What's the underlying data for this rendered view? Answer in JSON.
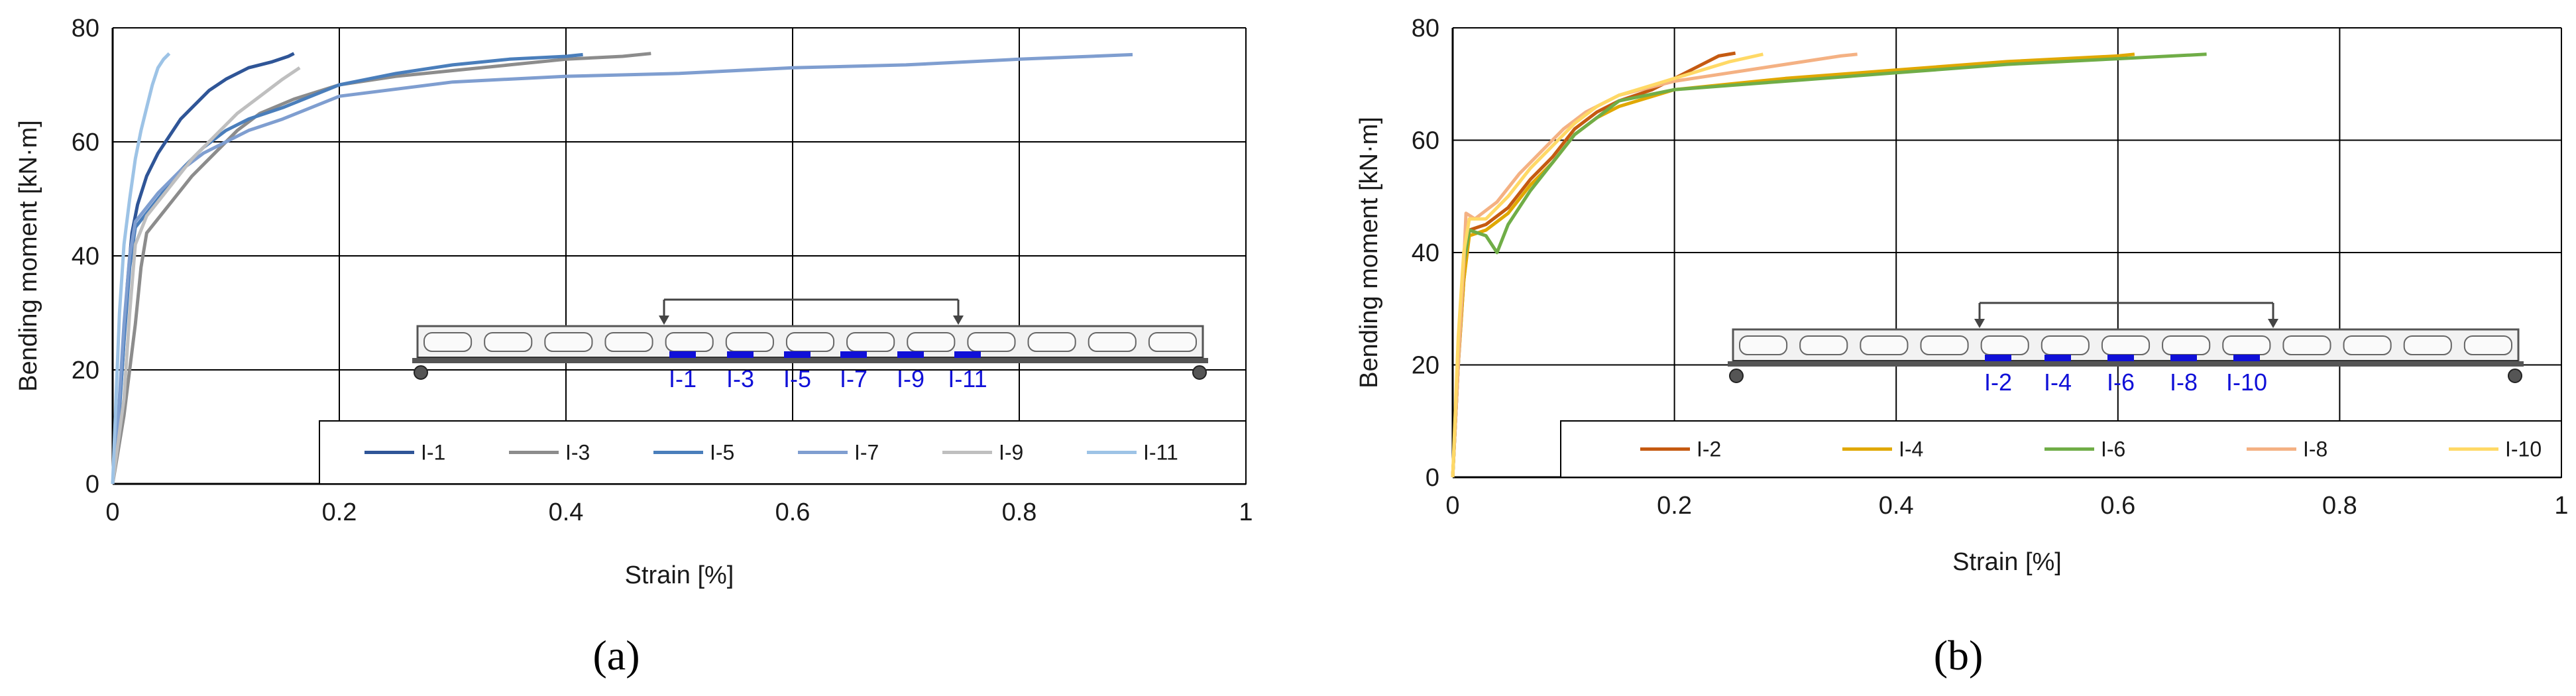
{
  "chart_data": [
    {
      "panel": "a",
      "type": "line",
      "panel_label_text": "(a)",
      "xlabel": "Strain [%]",
      "ylabel": "Bending moment [kN·m]",
      "xlim": [
        0,
        1
      ],
      "ylim": [
        0,
        80
      ],
      "xticks": [
        "0",
        "0.2",
        "0.4",
        "0.6",
        "0.8",
        "1"
      ],
      "yticks": [
        "0",
        "20",
        "40",
        "60",
        "80"
      ],
      "grid": true,
      "legend_position": "bottom-right inside",
      "series": [
        {
          "name": "I-1",
          "color": "#2f5597",
          "points": [
            [
              0,
              0
            ],
            [
              0.004,
              8
            ],
            [
              0.009,
              22
            ],
            [
              0.013,
              35
            ],
            [
              0.017,
              44
            ],
            [
              0.022,
              49
            ],
            [
              0.03,
              54
            ],
            [
              0.04,
              58
            ],
            [
              0.05,
              61
            ],
            [
              0.06,
              64
            ],
            [
              0.07,
              66
            ],
            [
              0.085,
              69
            ],
            [
              0.1,
              71
            ],
            [
              0.12,
              73
            ],
            [
              0.14,
              74
            ],
            [
              0.155,
              75
            ],
            [
              0.16,
              75.5
            ]
          ]
        },
        {
          "name": "I-3",
          "color": "#8c8c8c",
          "points": [
            [
              0,
              0
            ],
            [
              0.01,
              12
            ],
            [
              0.02,
              28
            ],
            [
              0.025,
              38
            ],
            [
              0.03,
              44
            ],
            [
              0.05,
              49
            ],
            [
              0.07,
              54
            ],
            [
              0.09,
              58
            ],
            [
              0.11,
              62
            ],
            [
              0.13,
              65
            ],
            [
              0.16,
              67.5
            ],
            [
              0.2,
              70
            ],
            [
              0.25,
              71.5
            ],
            [
              0.3,
              72.5
            ],
            [
              0.35,
              73.5
            ],
            [
              0.4,
              74.5
            ],
            [
              0.45,
              75
            ],
            [
              0.475,
              75.5
            ]
          ]
        },
        {
          "name": "I-5",
          "color": "#4a7ebb",
          "points": [
            [
              0,
              0
            ],
            [
              0.005,
              10
            ],
            [
              0.01,
              25
            ],
            [
              0.015,
              38
            ],
            [
              0.02,
              45
            ],
            [
              0.04,
              50
            ],
            [
              0.06,
              55
            ],
            [
              0.08,
              59
            ],
            [
              0.1,
              62
            ],
            [
              0.12,
              64
            ],
            [
              0.15,
              66
            ],
            [
              0.2,
              70
            ],
            [
              0.25,
              72
            ],
            [
              0.3,
              73.5
            ],
            [
              0.35,
              74.5
            ],
            [
              0.4,
              75
            ],
            [
              0.415,
              75.3
            ]
          ]
        },
        {
          "name": "I-7",
          "color": "#7f9ed0",
          "points": [
            [
              0,
              0
            ],
            [
              0.005,
              12
            ],
            [
              0.01,
              28
            ],
            [
              0.015,
              40
            ],
            [
              0.02,
              46
            ],
            [
              0.04,
              51
            ],
            [
              0.06,
              55
            ],
            [
              0.08,
              58
            ],
            [
              0.1,
              60
            ],
            [
              0.12,
              62
            ],
            [
              0.15,
              64
            ],
            [
              0.2,
              68
            ],
            [
              0.3,
              70.5
            ],
            [
              0.4,
              71.5
            ],
            [
              0.5,
              72
            ],
            [
              0.6,
              73
            ],
            [
              0.7,
              73.5
            ],
            [
              0.8,
              74.5
            ],
            [
              0.9,
              75.3
            ]
          ]
        },
        {
          "name": "I-9",
          "color": "#bfbfbf",
          "points": [
            [
              0,
              0
            ],
            [
              0.01,
              15
            ],
            [
              0.015,
              30
            ],
            [
              0.02,
              42
            ],
            [
              0.03,
              47
            ],
            [
              0.05,
              52
            ],
            [
              0.07,
              57
            ],
            [
              0.09,
              61
            ],
            [
              0.11,
              65
            ],
            [
              0.13,
              68
            ],
            [
              0.15,
              71
            ],
            [
              0.165,
              73
            ]
          ]
        },
        {
          "name": "I-11",
          "color": "#9dc3e6",
          "points": [
            [
              0,
              0
            ],
            [
              0.003,
              15
            ],
            [
              0.006,
              30
            ],
            [
              0.01,
              42
            ],
            [
              0.015,
              50
            ],
            [
              0.02,
              57
            ],
            [
              0.025,
              62
            ],
            [
              0.03,
              66
            ],
            [
              0.035,
              70
            ],
            [
              0.04,
              73
            ],
            [
              0.045,
              74.5
            ],
            [
              0.05,
              75.5
            ]
          ]
        }
      ],
      "inset": {
        "gauge_labels": [
          "I-1",
          "I-3",
          "I-5",
          "I-7",
          "I-9",
          "I-11"
        ]
      }
    },
    {
      "panel": "b",
      "type": "line",
      "panel_label_text": "(b)",
      "xlabel": "Strain [%]",
      "ylabel": "Bending moment [kN·m]",
      "xlim": [
        0,
        1
      ],
      "ylim": [
        0,
        80
      ],
      "xticks": [
        "0",
        "0.2",
        "0.4",
        "0.6",
        "0.8",
        "1"
      ],
      "yticks": [
        "0",
        "20",
        "40",
        "60",
        "80"
      ],
      "grid": true,
      "legend_position": "bottom-right inside",
      "series": [
        {
          "name": "I-2",
          "color": "#c55a11",
          "points": [
            [
              0,
              0
            ],
            [
              0.005,
              20
            ],
            [
              0.01,
              35
            ],
            [
              0.015,
              44
            ],
            [
              0.03,
              45
            ],
            [
              0.05,
              48
            ],
            [
              0.07,
              53
            ],
            [
              0.09,
              57
            ],
            [
              0.11,
              62
            ],
            [
              0.13,
              65
            ],
            [
              0.15,
              67
            ],
            [
              0.18,
              69
            ],
            [
              0.2,
              71
            ],
            [
              0.22,
              73
            ],
            [
              0.24,
              75
            ],
            [
              0.255,
              75.5
            ]
          ]
        },
        {
          "name": "I-4",
          "color": "#e0a800",
          "points": [
            [
              0,
              0
            ],
            [
              0.005,
              20
            ],
            [
              0.01,
              35
            ],
            [
              0.015,
              43
            ],
            [
              0.03,
              44
            ],
            [
              0.05,
              47
            ],
            [
              0.07,
              52
            ],
            [
              0.09,
              56
            ],
            [
              0.11,
              61
            ],
            [
              0.13,
              64
            ],
            [
              0.15,
              66
            ],
            [
              0.2,
              69
            ],
            [
              0.3,
              71
            ],
            [
              0.4,
              72.5
            ],
            [
              0.5,
              74
            ],
            [
              0.6,
              75
            ],
            [
              0.615,
              75.3
            ]
          ]
        },
        {
          "name": "I-6",
          "color": "#70ad47",
          "points": [
            [
              0,
              0
            ],
            [
              0.005,
              20
            ],
            [
              0.01,
              38
            ],
            [
              0.015,
              44
            ],
            [
              0.03,
              43
            ],
            [
              0.04,
              40
            ],
            [
              0.05,
              45
            ],
            [
              0.07,
              51
            ],
            [
              0.09,
              56
            ],
            [
              0.11,
              61
            ],
            [
              0.13,
              64
            ],
            [
              0.15,
              67
            ],
            [
              0.2,
              69
            ],
            [
              0.3,
              70.5
            ],
            [
              0.4,
              72
            ],
            [
              0.5,
              73.5
            ],
            [
              0.6,
              74.5
            ],
            [
              0.68,
              75.3
            ]
          ]
        },
        {
          "name": "I-8",
          "color": "#f4b183",
          "points": [
            [
              0,
              0
            ],
            [
              0.005,
              20
            ],
            [
              0.01,
              38
            ],
            [
              0.012,
              47
            ],
            [
              0.02,
              46
            ],
            [
              0.04,
              49
            ],
            [
              0.06,
              54
            ],
            [
              0.08,
              58
            ],
            [
              0.1,
              62
            ],
            [
              0.12,
              65
            ],
            [
              0.15,
              68
            ],
            [
              0.2,
              70.5
            ],
            [
              0.25,
              72
            ],
            [
              0.3,
              73.5
            ],
            [
              0.35,
              75
            ],
            [
              0.365,
              75.3
            ]
          ]
        },
        {
          "name": "I-10",
          "color": "#ffd966",
          "points": [
            [
              0,
              0
            ],
            [
              0.005,
              25
            ],
            [
              0.01,
              40
            ],
            [
              0.015,
              46
            ],
            [
              0.03,
              46
            ],
            [
              0.05,
              50
            ],
            [
              0.07,
              55
            ],
            [
              0.09,
              59
            ],
            [
              0.11,
              63
            ],
            [
              0.13,
              66
            ],
            [
              0.15,
              68
            ],
            [
              0.2,
              71
            ],
            [
              0.25,
              74
            ],
            [
              0.28,
              75.3
            ]
          ]
        }
      ],
      "inset": {
        "gauge_labels": [
          "I-2",
          "I-4",
          "I-6",
          "I-8",
          "I-10"
        ]
      }
    }
  ]
}
